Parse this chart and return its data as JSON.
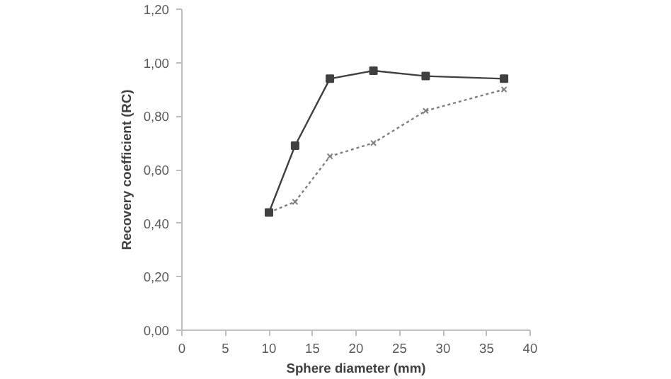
{
  "chart_data": {
    "type": "line",
    "xlabel": "Sphere diameter (mm)",
    "ylabel": "Recovery coefficient (RC)",
    "xlim": [
      0,
      40
    ],
    "xticks": [
      0,
      5,
      10,
      15,
      20,
      25,
      30,
      35,
      40
    ],
    "ylim": [
      0,
      1.2
    ],
    "yticks": [
      {
        "value": 0,
        "label": "0,00"
      },
      {
        "value": 0.2,
        "label": "0,20"
      },
      {
        "value": 0.4,
        "label": "0,40"
      },
      {
        "value": 0.6,
        "label": "0,60"
      },
      {
        "value": 0.8,
        "label": "0,80"
      },
      {
        "value": 1.0,
        "label": "1,00"
      },
      {
        "value": 1.2,
        "label": "1,20"
      }
    ],
    "x": [
      10,
      13,
      17,
      22,
      28,
      37
    ],
    "series": [
      {
        "color": "#7f7f7f",
        "values": [
          0.44,
          0.48,
          0.65,
          0.7,
          0.82,
          0.9
        ],
        "marker": "cross",
        "line_style": "dotted"
      },
      {
        "color": "#404040",
        "values": [
          0.44,
          0.69,
          0.94,
          0.97,
          0.95,
          0.94
        ],
        "marker": "square",
        "line_style": "solid"
      }
    ],
    "grid": false
  }
}
